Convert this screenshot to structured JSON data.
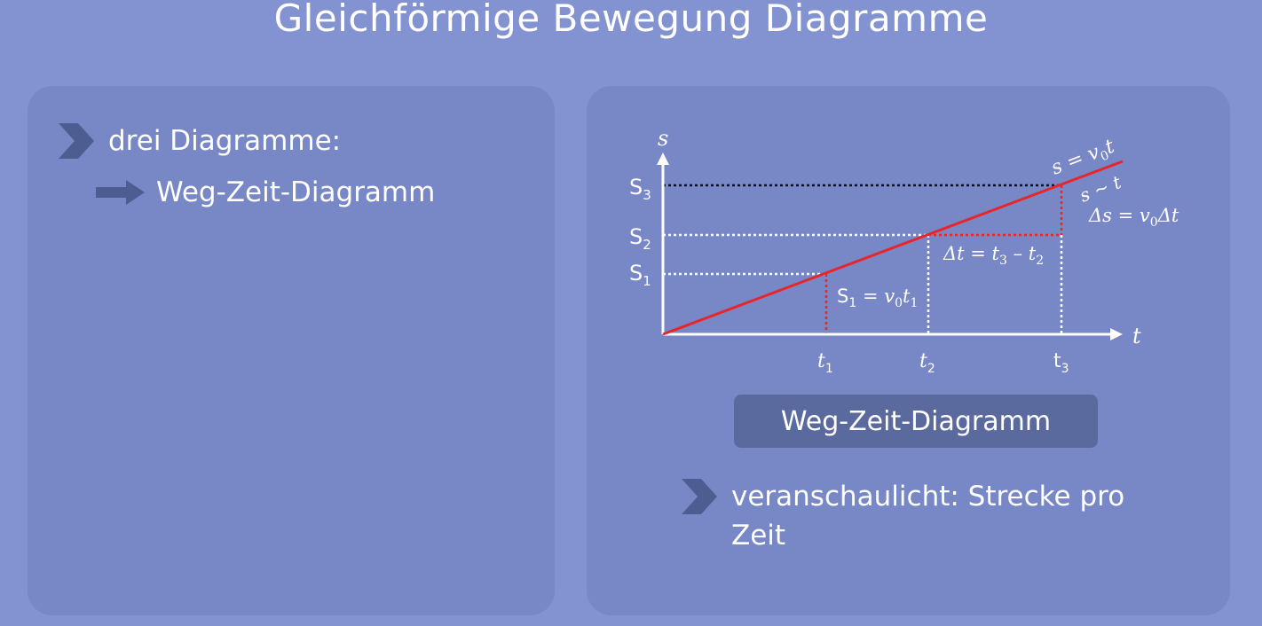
{
  "title": "Gleichförmige Bewegung Diagramme",
  "left_panel": {
    "bullet_1": "drei Diagramme:",
    "sub_1": "Weg-Zeit-Diagramm"
  },
  "right_panel": {
    "box_label": "Weg-Zeit-Diagramm",
    "outro_text": "veranschaulicht: Strecke pro Zeit"
  },
  "diagram": {
    "y_axis_label": "s",
    "x_axis_label": "t",
    "y_ticks": [
      {
        "main": "S",
        "sub": "1"
      },
      {
        "main": "S",
        "sub": "2"
      },
      {
        "main": "S",
        "sub": "3"
      }
    ],
    "x_ticks": [
      {
        "main": "t",
        "sub": "1"
      },
      {
        "main": "t",
        "sub": "2"
      },
      {
        "main": "t",
        "sub": "3"
      }
    ],
    "line_color": "#e8252b",
    "formula_line": {
      "a": "s = v",
      "sub": "0",
      "b": "t"
    },
    "formula_prop": "s ~ t",
    "formula_delta_s": {
      "a": "Δs = v",
      "sub": "0",
      "b": "Δt"
    },
    "formula_delta_t": {
      "a": "Δt = t",
      "sub1": "3",
      "mid": " – t",
      "sub2": "2"
    },
    "formula_s1": {
      "a": "S",
      "sub1": "1",
      "mid": " = v",
      "sub2": "0",
      "b": "t",
      "sub3": "1"
    }
  },
  "icons": [
    "chevron-right-icon",
    "arrow-right-icon"
  ]
}
